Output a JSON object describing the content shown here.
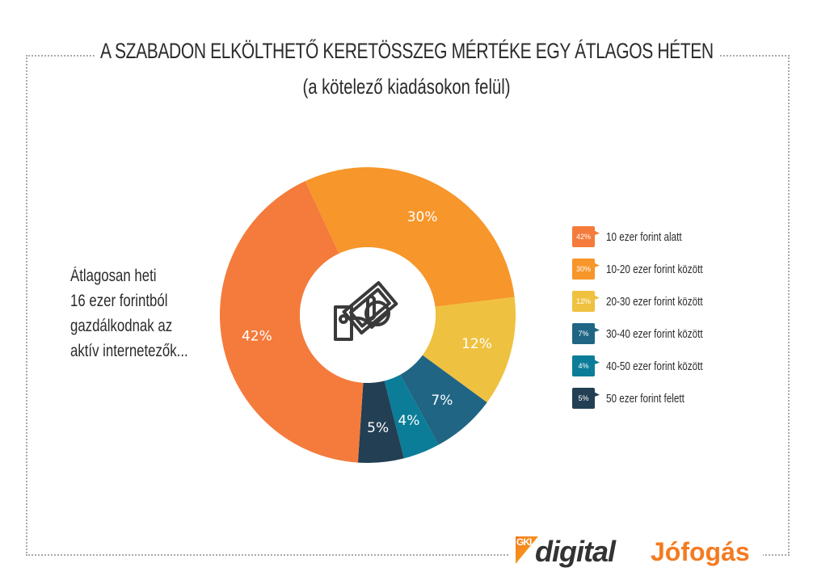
{
  "header": {
    "title": "A SZABADON ELKÖLTHETŐ KERETÖSSZEG MÉRTÉKE EGY ÁTLAGOS HÉTEN",
    "subtitle": "(a kötelező kiadásokon felül)"
  },
  "side_note": [
    "Átlagosan heti",
    "16 ezer forintból",
    "gazdálkodnak az",
    "aktív internetezők..."
  ],
  "chart_data": {
    "type": "pie",
    "donut": true,
    "title": "A SZABADON ELKÖLTHETŐ KERETÖSSZEG MÉRTÉKE EGY ÁTLAGOS HÉTEN",
    "subtitle": "(a kötelező kiadásokon felül)",
    "center_icon": "money-hand-icon",
    "legend_position": "right",
    "slices": [
      {
        "label": "10 ezer forint alatt",
        "value": 42,
        "display": "42%",
        "color": "#f47b3c"
      },
      {
        "label": "10-20 ezer forint között",
        "value": 30,
        "display": "30%",
        "color": "#f7962a"
      },
      {
        "label": "20-30 ezer forint között",
        "value": 12,
        "display": "12%",
        "color": "#efc140"
      },
      {
        "label": "30-40 ezer forint között",
        "value": 7,
        "display": "7%",
        "color": "#206584"
      },
      {
        "label": "40-50 ezer forint között",
        "value": 4,
        "display": "4%",
        "color": "#0b7d98"
      },
      {
        "label": "50 ezer forint felett",
        "value": 5,
        "display": "5%",
        "color": "#223f53"
      }
    ]
  },
  "logos": {
    "gki_mark": "GKI",
    "gki": "digital",
    "jofogas": "Jófogás"
  }
}
